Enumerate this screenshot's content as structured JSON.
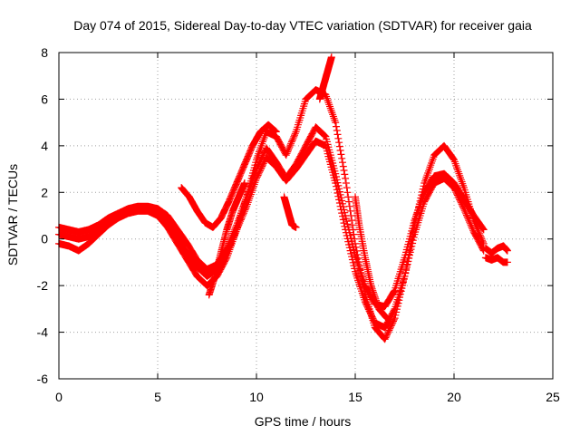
{
  "chart_data": {
    "type": "scatter",
    "title": "Day 074 of 2015, Sidereal Day-to-day VTEC variation (SDTVAR) for receiver gaia",
    "xlabel": "GPS time / hours",
    "ylabel": "SDTVAR / TECUs",
    "xlim": [
      0,
      25
    ],
    "ylim": [
      -6,
      8
    ],
    "xticks": [
      0,
      5,
      10,
      15,
      20,
      25
    ],
    "yticks": [
      -6,
      -4,
      -2,
      0,
      2,
      4,
      6,
      8
    ],
    "grid": true,
    "marker": "+",
    "color": "#ff0000",
    "series": [
      {
        "x": [
          0,
          0.5,
          1,
          1.5,
          2,
          2.5,
          3,
          3.5,
          4,
          4.5,
          5,
          5.5,
          6,
          6.5,
          7,
          7.5,
          8,
          8.5,
          9,
          9.5,
          10,
          10.5,
          11,
          11.5,
          12,
          12.5,
          13,
          13.5,
          14,
          14.5,
          15,
          15.5,
          16,
          16.5,
          17,
          17.5,
          18,
          18.5,
          19,
          19.5,
          20,
          20.5,
          21,
          21.5
        ],
        "y": [
          0.5,
          0.4,
          0.3,
          0.4,
          0.6,
          0.9,
          1.1,
          1.3,
          1.4,
          1.4,
          1.3,
          1.0,
          0.4,
          -0.2,
          -0.9,
          -1.3,
          -1.1,
          -0.4,
          0.6,
          1.8,
          3.0,
          3.9,
          3.3,
          2.6,
          3.2,
          4.0,
          4.8,
          4.4,
          2.8,
          1.0,
          -0.7,
          -2.0,
          -2.8,
          -2.9,
          -2.2,
          -0.8,
          0.8,
          2.0,
          2.7,
          2.8,
          2.4,
          1.7,
          1.0,
          0.4
        ]
      },
      {
        "x": [
          0,
          0.5,
          1,
          1.5,
          2,
          2.5,
          3,
          3.5,
          4,
          4.5,
          5,
          5.5,
          6,
          6.5,
          7,
          7.5,
          8,
          8.5,
          9,
          9.5,
          10,
          10.5,
          11,
          11.5,
          12,
          12.5,
          13,
          13.5,
          14,
          14.5,
          15,
          15.5,
          16,
          16.5,
          17,
          17.5,
          18,
          18.5,
          19,
          19.5,
          20,
          20.5,
          21,
          21.5
        ],
        "y": [
          0.2,
          0.1,
          0.0,
          0.1,
          0.4,
          0.8,
          1.0,
          1.2,
          1.3,
          1.3,
          1.1,
          0.7,
          0.1,
          -0.6,
          -1.2,
          -1.6,
          -1.3,
          -0.6,
          0.4,
          1.4,
          2.6,
          3.5,
          3.1,
          2.5,
          3.0,
          3.6,
          4.2,
          4.0,
          2.4,
          0.4,
          -1.4,
          -2.7,
          -3.6,
          -3.8,
          -3.0,
          -1.6,
          0.2,
          1.6,
          2.4,
          2.6,
          2.2,
          1.3,
          0.3,
          -0.5
        ]
      },
      {
        "x": [
          0,
          0.5,
          1,
          1.5,
          2,
          2.5,
          3,
          3.5,
          4,
          4.5,
          5,
          5.5,
          6,
          6.5,
          7,
          7.5,
          8,
          8.5,
          9,
          9.5,
          10,
          10.5,
          11,
          11.5,
          12,
          12.5,
          13,
          13.5,
          14,
          14.5,
          15,
          15.5,
          16,
          16.5,
          17,
          17.5,
          18,
          18.5,
          19,
          19.5,
          20,
          20.5,
          21,
          21.5
        ],
        "y": [
          -0.2,
          -0.3,
          -0.5,
          -0.2,
          0.2,
          0.6,
          0.9,
          1.1,
          1.2,
          1.2,
          1.0,
          0.5,
          -0.2,
          -0.9,
          -1.6,
          -2.0,
          -1.6,
          -0.8,
          0.4,
          1.8,
          3.4,
          4.6,
          4.4,
          3.6,
          4.6,
          6.0,
          6.4,
          6.2,
          5.0,
          2.6,
          -0.2,
          -2.4,
          -3.8,
          -4.3,
          -3.4,
          -1.6,
          0.6,
          2.4,
          3.6,
          4.0,
          3.4,
          2.2,
          0.8,
          -0.2
        ]
      },
      {
        "x": [
          6.2,
          6.6,
          7,
          7.4,
          7.8,
          8.2,
          8.6,
          9,
          9.4,
          9.8,
          10.2,
          10.6,
          11
        ],
        "y": [
          2.2,
          1.8,
          1.2,
          0.7,
          0.5,
          0.9,
          1.6,
          2.4,
          3.2,
          4.0,
          4.6,
          4.9,
          4.6
        ]
      },
      {
        "x": [
          7.6,
          7.9,
          8.2,
          8.5,
          8.8,
          9.1,
          9.4
        ],
        "y": [
          -2.4,
          -1.6,
          -0.6,
          0.4,
          1.2,
          1.8,
          2.4
        ]
      },
      {
        "x": [
          11.4,
          11.6,
          11.8,
          12
        ],
        "y": [
          1.8,
          1.2,
          0.6,
          0.5
        ]
      },
      {
        "x": [
          13.2,
          13.4,
          13.6,
          13.8
        ],
        "y": [
          6.0,
          6.6,
          7.2,
          7.8
        ]
      },
      {
        "x": [
          15,
          15.2,
          15.5,
          15.8,
          16.2,
          16.6
        ],
        "y": [
          1.8,
          0.6,
          -0.8,
          -2.0,
          -3.0,
          -3.4
        ]
      },
      {
        "x": [
          21.6,
          21.9,
          22.2,
          22.5,
          22.7
        ],
        "y": [
          -0.4,
          -0.6,
          -0.4,
          -0.3,
          -0.5
        ]
      },
      {
        "x": [
          21.6,
          21.9,
          22.2,
          22.5,
          22.7
        ],
        "y": [
          -0.8,
          -0.9,
          -0.8,
          -1.0,
          -1.0
        ]
      }
    ]
  }
}
